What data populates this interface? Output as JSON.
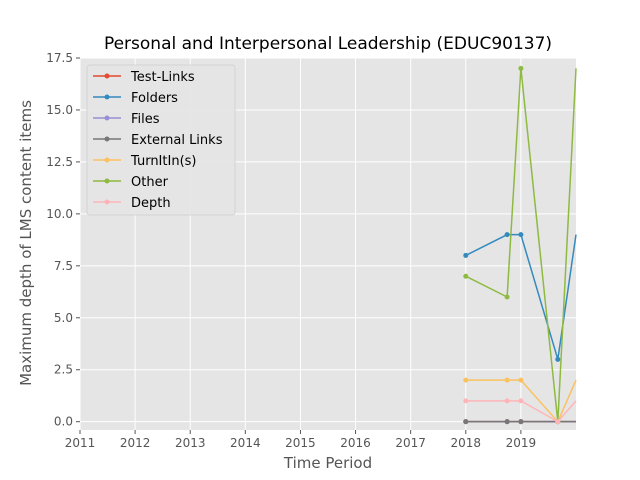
{
  "chart_data": {
    "type": "line",
    "title": "Personal and Interpersonal Leadership (EDUC90137)",
    "xlabel": "Time Period",
    "ylabel": "Maximum depth of LMS content items",
    "xlim": [
      2011.0,
      2020.0
    ],
    "ylim": [
      -0.4,
      17.5
    ],
    "x_ticks": [
      2011,
      2012,
      2013,
      2014,
      2015,
      2016,
      2017,
      2018,
      2019
    ],
    "x_tick_labels": [
      "2011",
      "2012",
      "2013",
      "2014",
      "2015",
      "2016",
      "2017",
      "2018",
      "2019"
    ],
    "y_ticks": [
      0.0,
      2.5,
      5.0,
      7.5,
      10.0,
      12.5,
      15.0,
      17.5
    ],
    "y_tick_labels": [
      "0.0",
      "2.5",
      "5.0",
      "7.5",
      "10.0",
      "12.5",
      "15.0",
      "17.5"
    ],
    "grid": true,
    "legend_position": "top-left",
    "x": [
      2018.0,
      2018.75,
      2019.0,
      2019.67,
      2020.0
    ],
    "series": [
      {
        "name": "Test-Links",
        "color": "#E24A33",
        "values": [
          0,
          0,
          0,
          0,
          0
        ]
      },
      {
        "name": "Folders",
        "color": "#348ABD",
        "values": [
          8,
          9,
          9,
          3,
          9
        ]
      },
      {
        "name": "Files",
        "color": "#988ED5",
        "values": [
          0,
          0,
          0,
          0,
          0
        ]
      },
      {
        "name": "External Links",
        "color": "#777777",
        "values": [
          0,
          0,
          0,
          0,
          0
        ]
      },
      {
        "name": "TurnItIn(s)",
        "color": "#FBC15E",
        "values": [
          2,
          2,
          2,
          0,
          2
        ]
      },
      {
        "name": "Other",
        "color": "#8EBA42",
        "values": [
          7,
          6,
          17,
          0,
          17
        ]
      },
      {
        "name": "Depth",
        "color": "#FFB5B8",
        "values": [
          1,
          1,
          1,
          0,
          1
        ]
      }
    ]
  }
}
